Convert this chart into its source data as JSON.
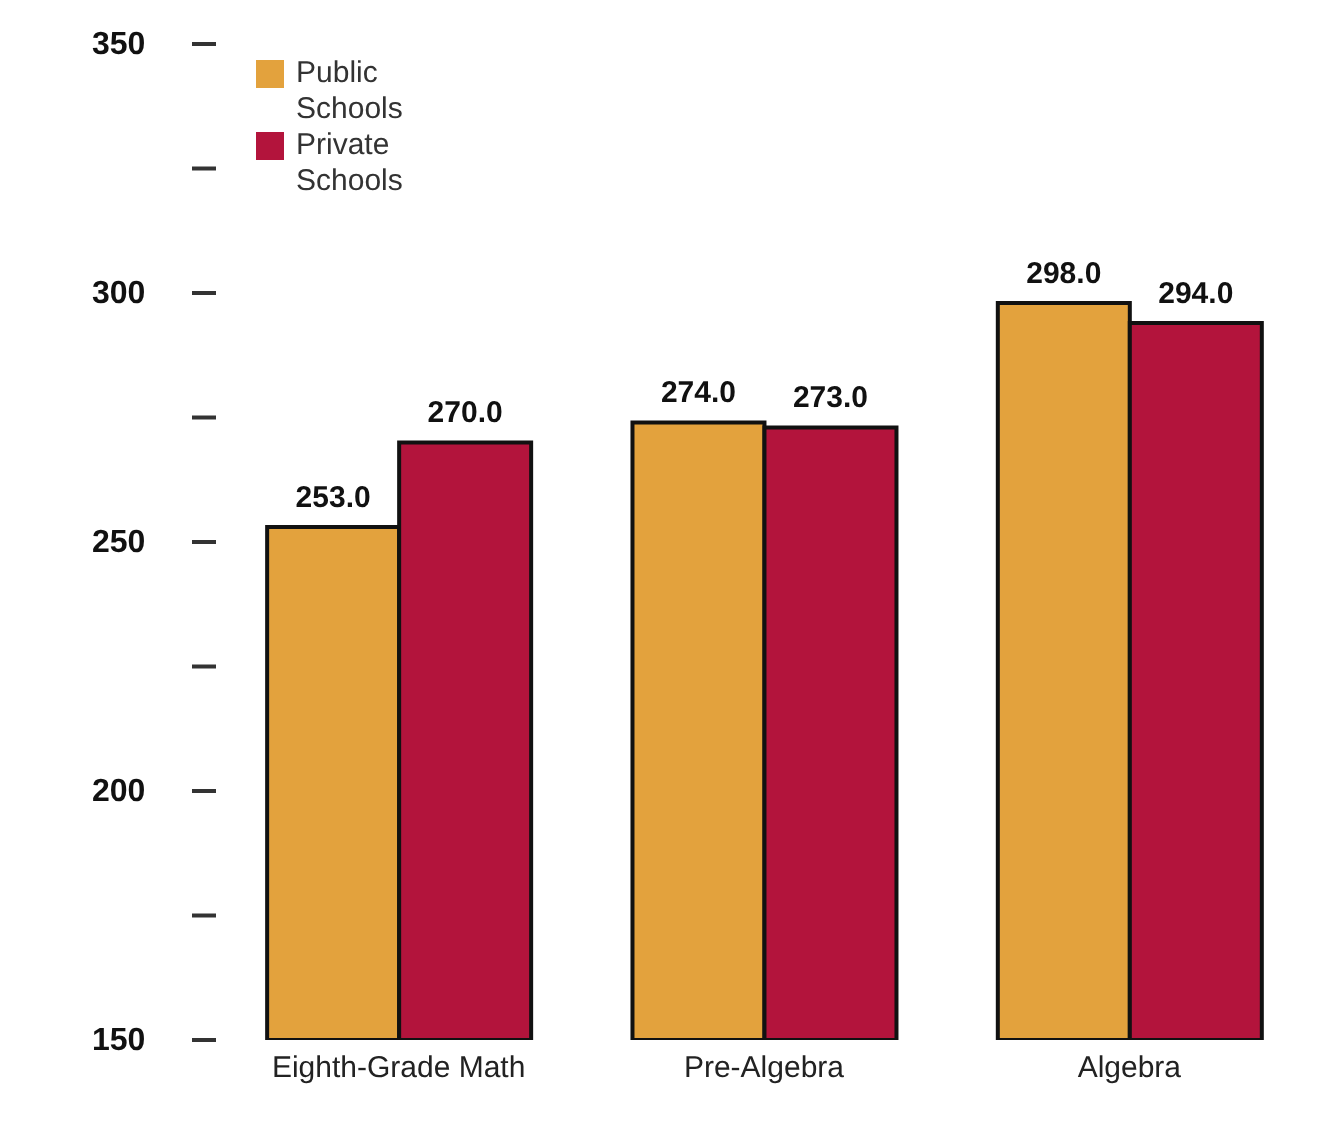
{
  "chart_data": {
    "type": "bar",
    "categories": [
      "Eighth-Grade Math",
      "Pre-Algebra",
      "Algebra"
    ],
    "series": [
      {
        "name": "Public Schools",
        "color": "#e3a23d",
        "values": [
          253,
          274,
          298
        ],
        "value_labels": [
          "253.0",
          "274.0",
          "298.0"
        ]
      },
      {
        "name": "Private Schools",
        "color": "#b3143c",
        "values": [
          270,
          273,
          294
        ],
        "value_labels": [
          "270.0",
          "273.0",
          "294.0"
        ]
      }
    ],
    "ylim": [
      150,
      350
    ],
    "yticks": [
      150,
      {
        "value": 175,
        "label": null
      },
      200,
      {
        "value": 225,
        "label": null
      },
      250,
      {
        "value": 275,
        "label": null
      },
      300,
      {
        "value": 325,
        "label": null
      },
      350
    ],
    "legend": "top left",
    "grid": false
  }
}
